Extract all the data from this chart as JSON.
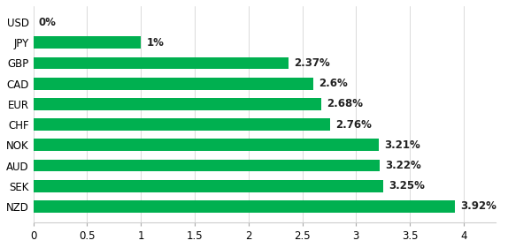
{
  "categories": [
    "USD",
    "JPY",
    "GBP",
    "CAD",
    "EUR",
    "CHF",
    "NOK",
    "AUD",
    "SEK",
    "NZD"
  ],
  "values": [
    0,
    1,
    2.37,
    2.6,
    2.68,
    2.76,
    3.21,
    3.22,
    3.25,
    3.92
  ],
  "labels": [
    "0%",
    "1%",
    "2.37%",
    "2.6%",
    "2.68%",
    "2.76%",
    "3.21%",
    "3.22%",
    "3.25%",
    "3.92%"
  ],
  "bar_color": "#00b050",
  "background_color": "#ffffff",
  "xlim": [
    0,
    4.3
  ],
  "xticks": [
    0,
    0.5,
    1,
    1.5,
    2,
    2.5,
    3,
    3.5,
    4
  ],
  "bar_height": 0.6,
  "label_fontsize": 8.5,
  "tick_fontsize": 8.5
}
